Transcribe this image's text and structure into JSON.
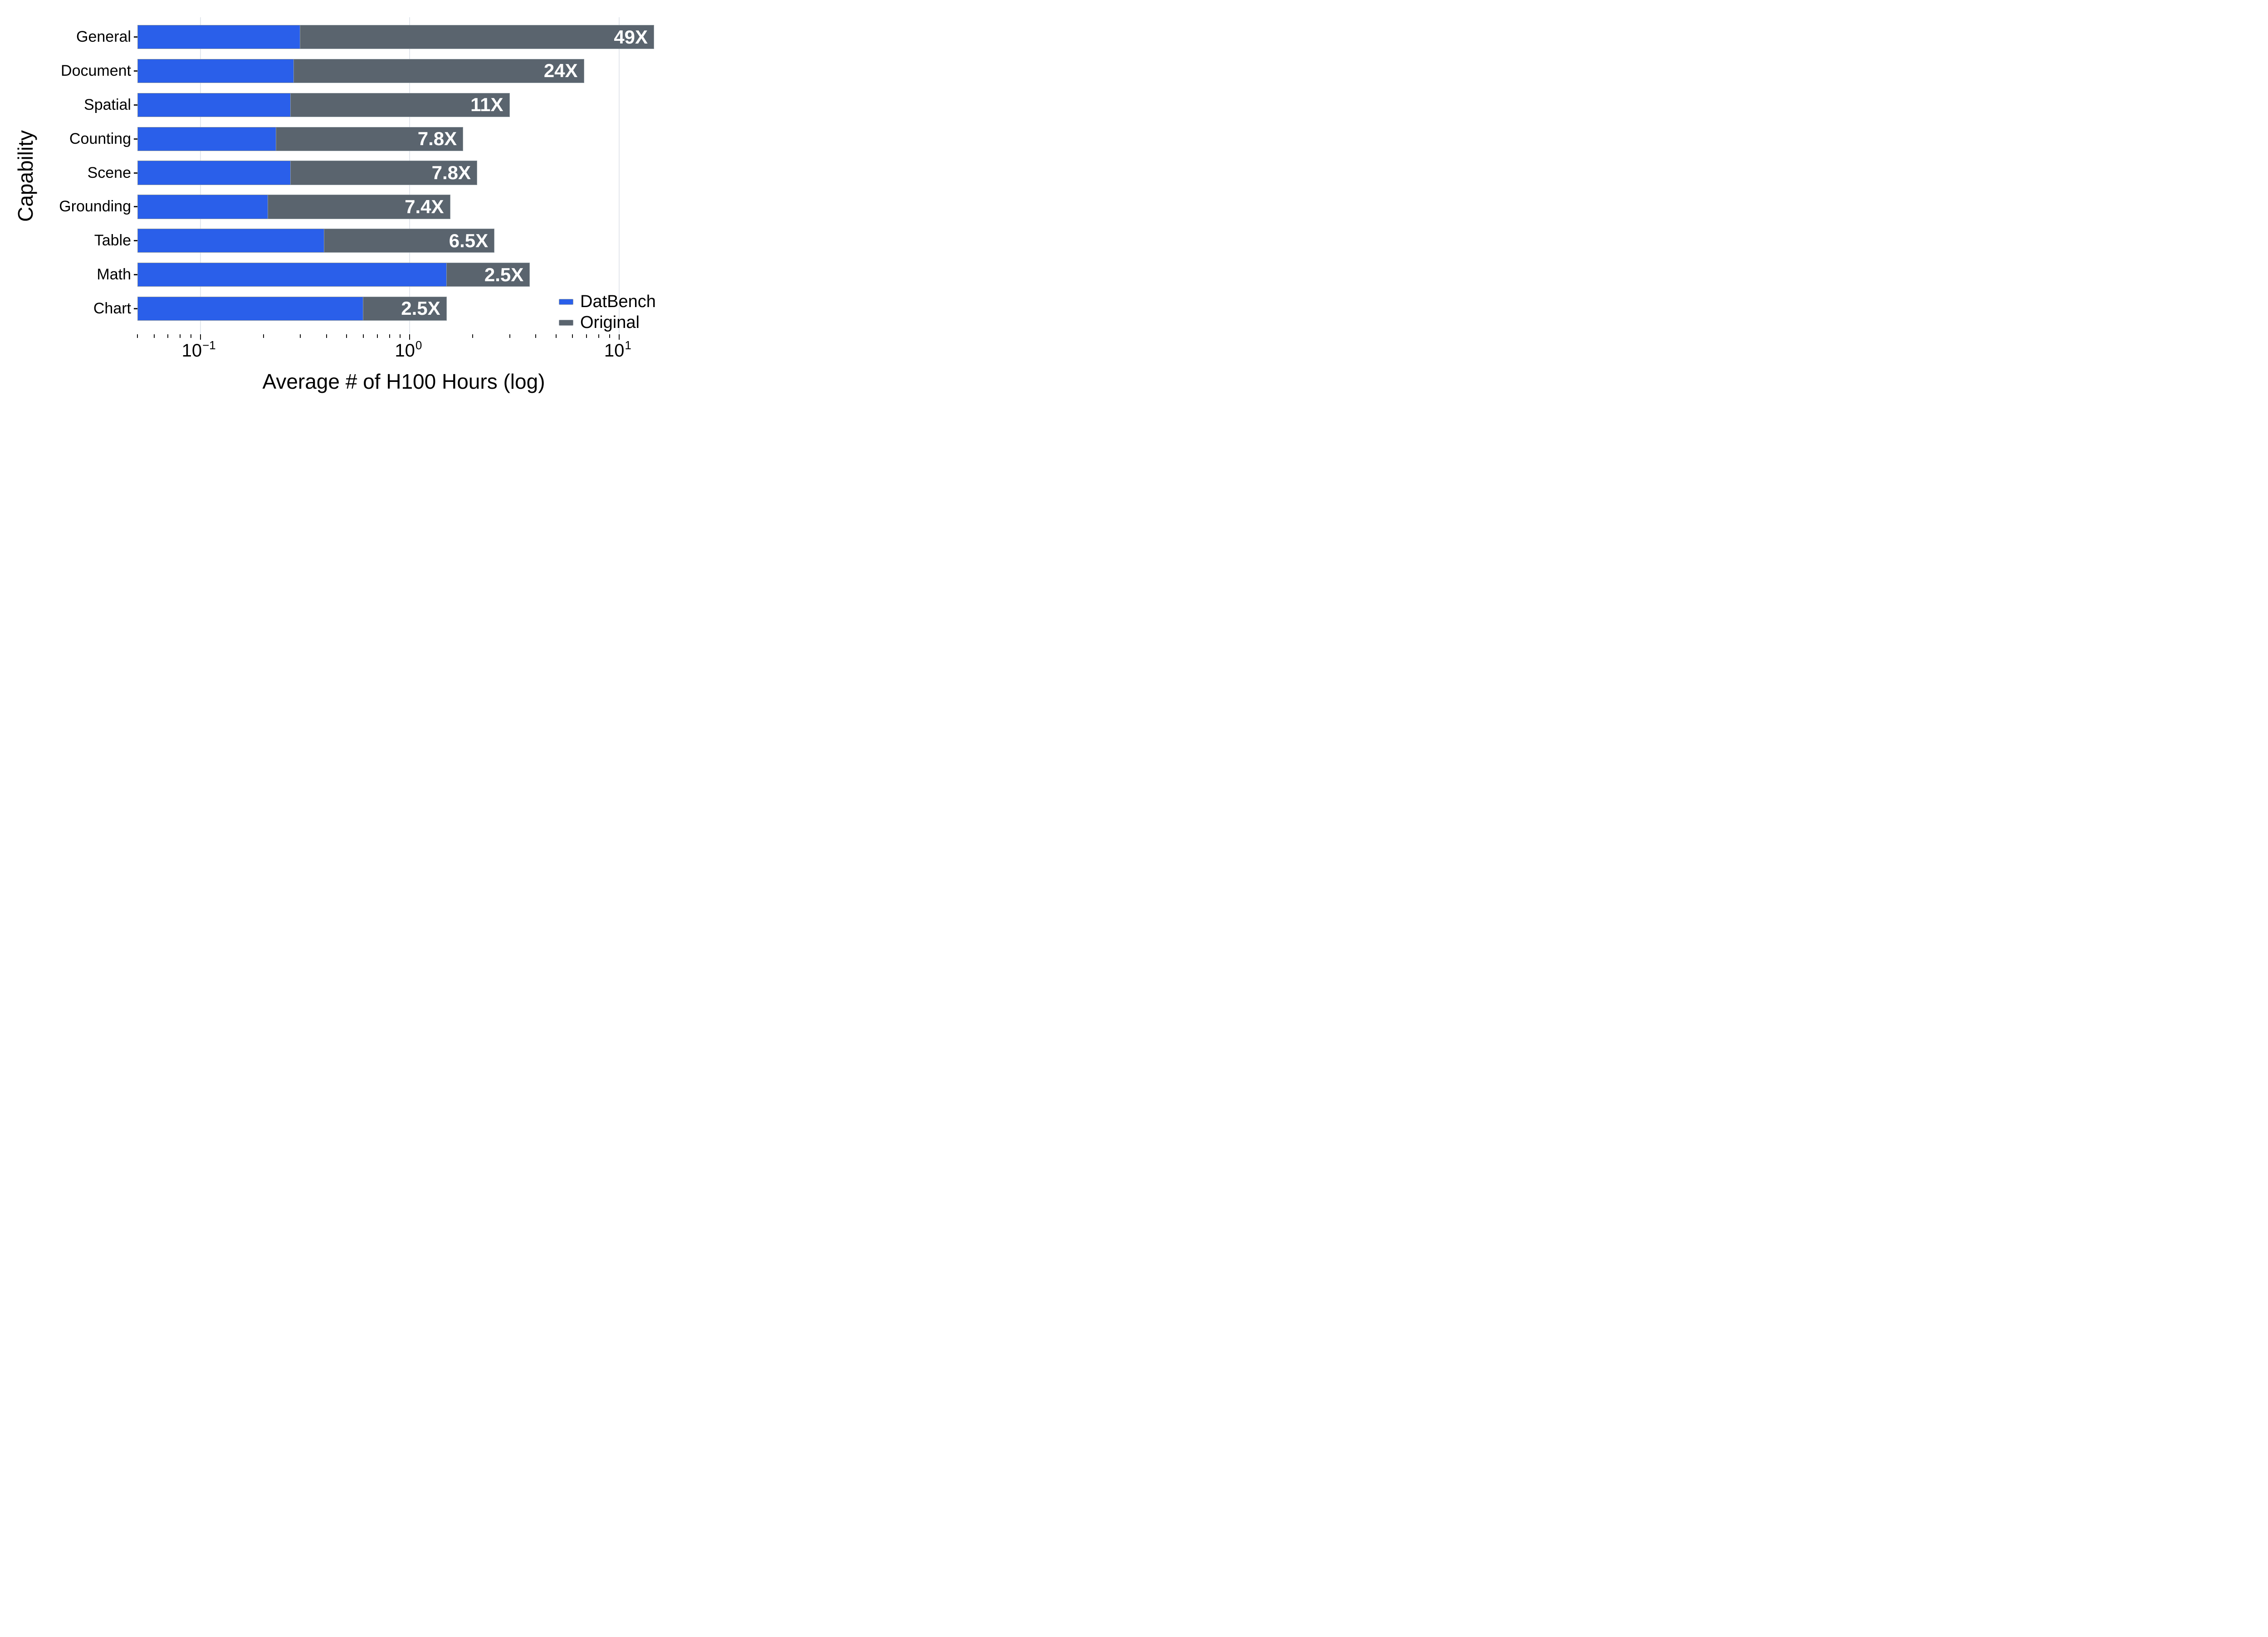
{
  "chart_data": {
    "type": "bar",
    "orientation": "horizontal",
    "x_scale": "log10",
    "title": "",
    "xlabel": "Average # of H100 Hours (log)",
    "ylabel": "Capability",
    "xlim": [
      0.05,
      17.5
    ],
    "grid": "vertical gridlines at decades only",
    "legend_position": "lower right",
    "categories": [
      "General",
      "Document",
      "Spatial",
      "Counting",
      "Scene",
      "Grounding",
      "Table",
      "Math",
      "Chart"
    ],
    "series": [
      {
        "name": "DatBench",
        "color": "#2A5FEA",
        "values": [
          0.3,
          0.28,
          0.27,
          0.23,
          0.27,
          0.21,
          0.39,
          1.5,
          0.6
        ]
      },
      {
        "name": "Original",
        "color": "#5A646E",
        "values": [
          14.7,
          6.8,
          3.0,
          1.8,
          2.1,
          1.56,
          2.54,
          3.75,
          1.5
        ]
      }
    ],
    "bar_ratio_labels": [
      "49X",
      "24X",
      "11X",
      "7.8X",
      "7.8X",
      "7.4X",
      "6.5X",
      "2.5X",
      "2.5X"
    ],
    "x_major_ticks": [
      {
        "value": 0.1,
        "base": "10",
        "exponent": "−1"
      },
      {
        "value": 1,
        "base": "10",
        "exponent": "0"
      },
      {
        "value": 10,
        "base": "10",
        "exponent": "1"
      }
    ],
    "x_minor_ticks": [
      0.05,
      0.06,
      0.07,
      0.08,
      0.09,
      0.2,
      0.3,
      0.4,
      0.5,
      0.6,
      0.7,
      0.8,
      0.9,
      2,
      3,
      4,
      5,
      6,
      7,
      8,
      9
    ],
    "legend": {
      "entries": [
        {
          "label": "DatBench",
          "color": "#2A5FEA"
        },
        {
          "label": "Original",
          "color": "#5A646E"
        }
      ]
    },
    "colors": {
      "bar_edge": "#8E989E",
      "gridline": "#E3E7ED",
      "tick": "#111111",
      "text": "#000000",
      "ratio_label_text": "#FFFFFF",
      "background": "#FFFFFF"
    }
  }
}
